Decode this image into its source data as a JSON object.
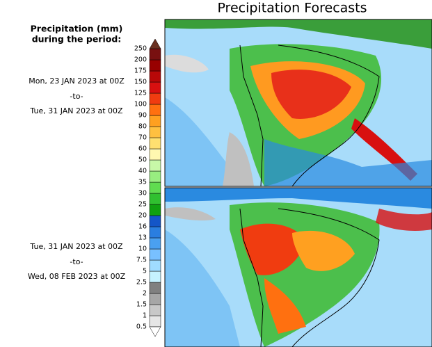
{
  "header": {
    "title": "Precipitation Forecasts"
  },
  "legend": {
    "title_lines": [
      "Precipitation (mm)",
      "during the period:"
    ],
    "levels": [
      0.5,
      1,
      1.5,
      2,
      2.5,
      5,
      7.5,
      10,
      13,
      16,
      20,
      25,
      30,
      35,
      40,
      50,
      60,
      70,
      80,
      90,
      100,
      125,
      150,
      175,
      200,
      250
    ],
    "colors": [
      "#e6e6e6",
      "#c8c8c8",
      "#a6a6a6",
      "#808080",
      "#c6f2ff",
      "#a0dcff",
      "#78c0ff",
      "#4aa0f0",
      "#2a7ee0",
      "#1456c8",
      "#10a010",
      "#30c030",
      "#60dc50",
      "#98ee80",
      "#c8f8a8",
      "#fff8b0",
      "#ffe070",
      "#ffc040",
      "#ffa020",
      "#ff7010",
      "#f03c10",
      "#d81010",
      "#b80808",
      "#980000",
      "#781010"
    ],
    "under_color": "#ffffff",
    "over_color": "#6a3020"
  },
  "periods": [
    {
      "start": "Mon, 23 JAN 2023 at 00Z",
      "separator": "-to-",
      "end": "Tue, 31 JAN 2023 at 00Z"
    },
    {
      "start": "Tue, 31 JAN 2023 at 00Z",
      "separator": "-to-",
      "end": "Wed, 08 FEB 2023 at 00Z"
    }
  ]
}
